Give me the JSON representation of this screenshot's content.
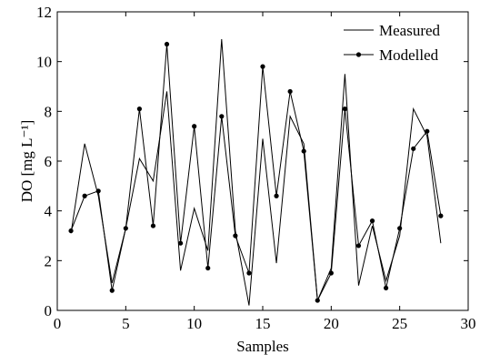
{
  "chart_data": {
    "type": "line",
    "xlabel": "Samples",
    "ylabel": "DO [mg L⁻¹]",
    "xlim": [
      0,
      30
    ],
    "ylim": [
      0,
      12
    ],
    "xticks": [
      0,
      5,
      10,
      15,
      20,
      25,
      30
    ],
    "yticks": [
      0,
      2,
      4,
      6,
      8,
      10,
      12
    ],
    "grid": false,
    "legend_position": "top-right",
    "series": [
      {
        "name": "Measured",
        "style": "solid line",
        "color": "#000000",
        "x": [
          1,
          2,
          3,
          4,
          5,
          6,
          7,
          8,
          9,
          10,
          11,
          12,
          13,
          14,
          15,
          16,
          17,
          18,
          19,
          20,
          21,
          22,
          23,
          24,
          25,
          26,
          27,
          28
        ],
        "y": [
          3.1,
          6.7,
          4.6,
          1.1,
          3.3,
          6.1,
          5.2,
          8.8,
          1.6,
          4.1,
          2.4,
          10.9,
          3.2,
          0.2,
          6.9,
          1.9,
          7.8,
          6.7,
          0.4,
          1.7,
          9.5,
          1.0,
          3.4,
          1.2,
          3.0,
          8.1,
          7.0,
          2.7
        ]
      },
      {
        "name": "Modelled",
        "style": "line with dot markers",
        "color": "#000000",
        "x": [
          1,
          2,
          3,
          4,
          5,
          6,
          7,
          8,
          9,
          10,
          11,
          12,
          13,
          14,
          15,
          16,
          17,
          18,
          19,
          20,
          21,
          22,
          23,
          24,
          25,
          26,
          27,
          28
        ],
        "y": [
          3.2,
          4.6,
          4.8,
          0.8,
          3.3,
          8.1,
          3.4,
          10.7,
          2.7,
          7.4,
          1.7,
          7.8,
          3.0,
          1.5,
          9.8,
          4.6,
          8.8,
          6.4,
          0.4,
          1.5,
          8.1,
          2.6,
          3.6,
          0.9,
          3.3,
          6.5,
          7.2,
          3.8
        ]
      }
    ]
  }
}
